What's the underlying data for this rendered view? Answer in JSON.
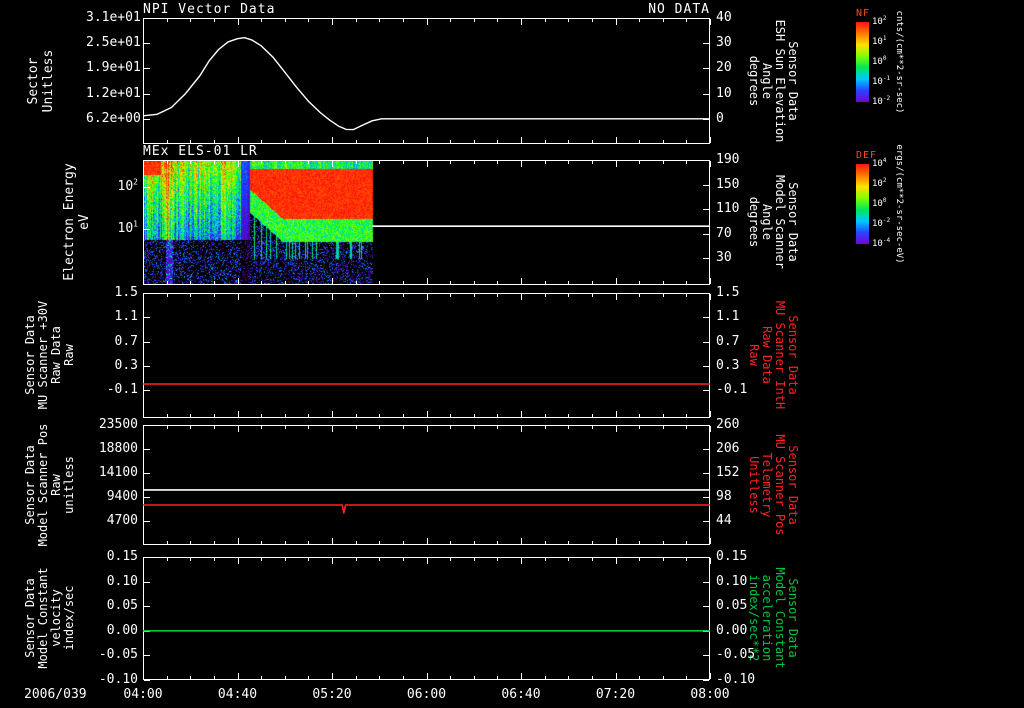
{
  "colors": {
    "background": "#000000",
    "foreground": "#ffffff",
    "red_series": "#ff2222",
    "green_series": "#00c83c",
    "colorbar_title": "#ff4a1a"
  },
  "time_axis": {
    "date_label": "2006/039",
    "unit": "minutes since 04:00",
    "range_min": [
      0,
      240
    ],
    "major_ticks": [
      {
        "min": 0,
        "label": "04:00"
      },
      {
        "min": 40,
        "label": "04:40"
      },
      {
        "min": 80,
        "label": "05:20"
      },
      {
        "min": 120,
        "label": "06:00"
      },
      {
        "min": 160,
        "label": "06:40"
      },
      {
        "min": 200,
        "label": "07:20"
      },
      {
        "min": 240,
        "label": "08:00"
      }
    ],
    "minor_interval_min": 10
  },
  "chart_data": [
    {
      "id": "p1",
      "type": "line",
      "title": "NPI Vector Data",
      "annotation": "NO DATA",
      "left_axis": {
        "label_lines": [
          "Sector",
          "Unitless"
        ],
        "scale": "linear",
        "range": [
          31,
          0
        ],
        "ticks": [
          {
            "value": 31,
            "label": "3.1e+01"
          },
          {
            "value": 24.8,
            "label": "2.5e+01"
          },
          {
            "value": 18.6,
            "label": "1.9e+01"
          },
          {
            "value": 12.4,
            "label": "1.2e+01"
          },
          {
            "value": 6.2,
            "label": "6.2e+00"
          }
        ]
      },
      "right_axis": {
        "label_lines": [
          "Sensor Data",
          "ESH Sun Elevation",
          "Angle",
          "degrees"
        ],
        "label_color": "#ffffff",
        "scale": "linear",
        "range": [
          40,
          -10
        ],
        "ticks": [
          {
            "value": 40,
            "label": "40"
          },
          {
            "value": 30,
            "label": "30"
          },
          {
            "value": 20,
            "label": "20"
          },
          {
            "value": 10,
            "label": "10"
          },
          {
            "value": 0,
            "label": "0"
          }
        ]
      },
      "series": [
        {
          "name": "esh-sun-elevation-angle",
          "color": "#ffffff",
          "axis": "right",
          "width": 1.4,
          "points": [
            [
              0,
              1.2
            ],
            [
              6,
              1.8
            ],
            [
              12,
              4.5
            ],
            [
              18,
              10
            ],
            [
              24,
              17
            ],
            [
              28,
              23
            ],
            [
              32,
              27.5
            ],
            [
              36,
              30.5
            ],
            [
              40,
              31.8
            ],
            [
              43,
              32.2
            ],
            [
              46,
              31.3
            ],
            [
              50,
              29
            ],
            [
              55,
              24.5
            ],
            [
              60,
              18.5
            ],
            [
              65,
              12.5
            ],
            [
              70,
              7
            ],
            [
              75,
              2.5
            ],
            [
              79,
              -0.5
            ],
            [
              83,
              -3
            ],
            [
              86,
              -4.2
            ],
            [
              89,
              -4.3
            ],
            [
              93,
              -2.5
            ],
            [
              97,
              -0.8
            ],
            [
              101,
              0
            ],
            [
              240,
              0
            ]
          ]
        }
      ]
    },
    {
      "id": "p2",
      "type": "heatmap",
      "title": "MEx ELS-01 LR",
      "left_axis": {
        "label_lines": [
          "Electron Energy",
          "eV"
        ],
        "scale": "log",
        "range": [
          420,
          0.5
        ],
        "ticks": [
          {
            "value": 100,
            "label": "10^2"
          },
          {
            "value": 10,
            "label": "10^1"
          }
        ]
      },
      "right_axis": {
        "label_lines": [
          "Sensor Data",
          "Model Scanner",
          "Angle",
          "degrees"
        ],
        "label_color": "#ffffff",
        "scale": "linear",
        "range": [
          190,
          -14
        ],
        "ticks": [
          {
            "value": 190,
            "label": "190"
          },
          {
            "value": 150,
            "label": "150"
          },
          {
            "value": 110,
            "label": "110"
          },
          {
            "value": 70,
            "label": "70"
          },
          {
            "value": 30,
            "label": "30"
          }
        ]
      },
      "series": [
        {
          "name": "model-scanner-angle",
          "color": "#ffffff",
          "axis": "right",
          "width": 1.6,
          "points": [
            [
              97,
              82
            ],
            [
              240,
              82
            ]
          ]
        }
      ],
      "spectrogram": {
        "seed": 39,
        "time_range_min": [
          0,
          97
        ],
        "energy_range_ev": [
          0.5,
          420
        ],
        "onset_min": 45,
        "end_min": 97,
        "red_band_logE": [
          1.25,
          2.45
        ],
        "description": "noisy low-flux speckle 04:00-04:45, intense 20-300 eV electron flux band 04:45-05:37, no data afterwards"
      }
    },
    {
      "id": "p3",
      "type": "line",
      "left_axis": {
        "label_lines": [
          "Sensor Data",
          "MU Scanner +30V",
          "Raw Data",
          "Raw"
        ],
        "scale": "linear",
        "range": [
          1.5,
          -0.56
        ],
        "ticks": [
          {
            "value": 1.5,
            "label": "1.5"
          },
          {
            "value": 1.1,
            "label": "1.1"
          },
          {
            "value": 0.7,
            "label": "0.7"
          },
          {
            "value": 0.3,
            "label": "0.3"
          },
          {
            "value": -0.1,
            "label": "-0.1"
          }
        ]
      },
      "right_axis": {
        "label_lines": [
          "Sensor Data",
          "MU Scanner IntH",
          "Raw Data",
          "Raw"
        ],
        "label_color": "#ff2222",
        "scale": "linear",
        "range": [
          1.5,
          -0.56
        ],
        "ticks": [
          {
            "value": 1.5,
            "label": "1.5"
          },
          {
            "value": 1.1,
            "label": "1.1"
          },
          {
            "value": 0.7,
            "label": "0.7"
          },
          {
            "value": 0.3,
            "label": "0.3"
          },
          {
            "value": -0.1,
            "label": "-0.1"
          }
        ]
      },
      "series": [
        {
          "name": "mu-scanner-inth-raw",
          "color": "#ff2222",
          "axis": "right",
          "width": 1.6,
          "points": [
            [
              0,
              0
            ],
            [
              240,
              0
            ]
          ]
        }
      ]
    },
    {
      "id": "p4",
      "type": "line",
      "left_axis": {
        "label_lines": [
          "Sensor Data",
          "Model Scanner Pos",
          "Raw",
          "unitless"
        ],
        "scale": "linear",
        "range": [
          23500,
          0
        ],
        "ticks": [
          {
            "value": 23500,
            "label": "23500"
          },
          {
            "value": 18800,
            "label": "18800"
          },
          {
            "value": 14100,
            "label": "14100"
          },
          {
            "value": 9400,
            "label": "9400"
          },
          {
            "value": 4700,
            "label": "4700"
          }
        ]
      },
      "right_axis": {
        "label_lines": [
          "Sensor Data",
          "MU Scanner Pos",
          "Telemetry",
          "Unitless"
        ],
        "label_color": "#ff2222",
        "scale": "linear",
        "range": [
          260,
          -10
        ],
        "ticks": [
          {
            "value": 260,
            "label": "260"
          },
          {
            "value": 206,
            "label": "206"
          },
          {
            "value": 152,
            "label": "152"
          },
          {
            "value": 98,
            "label": "98"
          },
          {
            "value": 44,
            "label": "44"
          }
        ]
      },
      "series": [
        {
          "name": "model-scanner-pos-raw",
          "color": "#ffffff",
          "axis": "left",
          "width": 1.6,
          "points": [
            [
              0,
              10800
            ],
            [
              240,
              10800
            ]
          ]
        },
        {
          "name": "mu-scanner-pos-telemetry",
          "color": "#ff2222",
          "axis": "right",
          "width": 1.6,
          "points": [
            [
              0,
              80
            ],
            [
              84.3,
              80
            ],
            [
              85,
              62
            ],
            [
              85.7,
              80
            ],
            [
              240,
              80
            ]
          ]
        }
      ]
    },
    {
      "id": "p5",
      "type": "line",
      "left_axis": {
        "label_lines": [
          "Sensor Data",
          "Model Constant",
          "velocity",
          "index/sec"
        ],
        "scale": "linear",
        "range": [
          0.15,
          -0.1
        ],
        "ticks": [
          {
            "value": 0.15,
            "label": "0.15"
          },
          {
            "value": 0.1,
            "label": "0.10"
          },
          {
            "value": 0.05,
            "label": "0.05"
          },
          {
            "value": 0,
            "label": "0.00"
          },
          {
            "value": -0.05,
            "label": "-0.05"
          },
          {
            "value": -0.1,
            "label": "-0.10"
          }
        ]
      },
      "right_axis": {
        "label_lines": [
          "Sensor Data",
          "Model Constant",
          "acceleration",
          "index/sec**2"
        ],
        "label_color": "#00c83c",
        "scale": "linear",
        "range": [
          0.15,
          -0.1
        ],
        "ticks": [
          {
            "value": 0.15,
            "label": "0.15"
          },
          {
            "value": 0.1,
            "label": "0.10"
          },
          {
            "value": 0.05,
            "label": "0.05"
          },
          {
            "value": 0,
            "label": "0.00"
          },
          {
            "value": -0.05,
            "label": "-0.05"
          },
          {
            "value": -0.1,
            "label": "-0.10"
          }
        ]
      },
      "series": [
        {
          "name": "model-constant-acceleration",
          "color": "#00c83c",
          "axis": "right",
          "width": 1.6,
          "points": [
            [
              0,
              0
            ],
            [
              240,
              0
            ]
          ]
        }
      ]
    }
  ],
  "colorbars": [
    {
      "id": "nf",
      "title": "NF",
      "unit": "cnts/(cm**2-sr-sec)",
      "tick_labels": [
        "10^2",
        "10^1",
        "10^0",
        "10^-1",
        "10^-2"
      ]
    },
    {
      "id": "def",
      "title": "DEF",
      "unit": "ergs/(cm**2-sr-sec-eV)",
      "tick_labels": [
        "10^4",
        "10^2",
        "10^0",
        "10^-2",
        "10^-4"
      ]
    }
  ]
}
